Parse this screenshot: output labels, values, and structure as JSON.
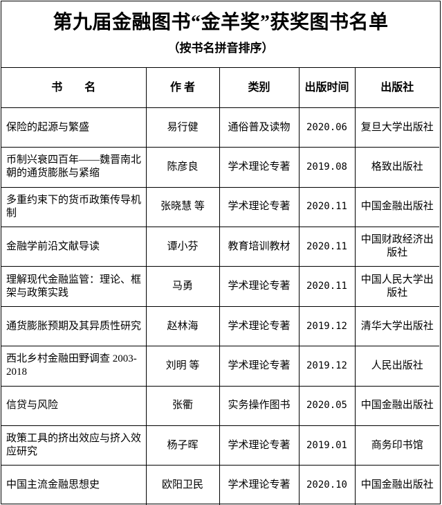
{
  "title": "第九届金融图书“金羊奖”获奖图书名单",
  "subtitle": "（按书名拼音排序）",
  "table": {
    "headers": [
      "书　　名",
      "作 者",
      "类别",
      "出版时间",
      "出版社"
    ],
    "rows": [
      [
        "保险的起源与繁盛",
        "易行健",
        "通俗普及读物",
        "2020.06",
        "复旦大学出版社"
      ],
      [
        "币制兴衰四百年——魏晋南北朝的通货膨胀与紧缩",
        "陈彦良",
        "学术理论专著",
        "2019.08",
        "格致出版社"
      ],
      [
        "多重约束下的货币政策传导机制",
        "张晓慧 等",
        "学术理论专著",
        "2020.11",
        "中国金融出版社"
      ],
      [
        "金融学前沿文献导读",
        "谭小芬",
        "教育培训教材",
        "2020.11",
        "中国财政经济出版社"
      ],
      [
        "理解现代金融监管：理论、框架与政策实践",
        "马勇",
        "学术理论专著",
        "2020.11",
        "中国人民大学出版社"
      ],
      [
        "通货膨胀预期及其异质性研究",
        "赵林海",
        "学术理论专著",
        "2019.12",
        "清华大学出版社"
      ],
      [
        "西北乡村金融田野调查 2003-2018",
        "刘明 等",
        "学术理论专著",
        "2019.12",
        "人民出版社"
      ],
      [
        "信贷与风险",
        "张衢",
        "实务操作图书",
        "2020.05",
        "中国金融出版社"
      ],
      [
        "政策工具的挤出效应与挤入效应研究",
        "杨子晖",
        "学术理论专著",
        "2019.01",
        "商务印书馆"
      ],
      [
        "中国主流金融思想史",
        "欧阳卫民",
        "学术理论专著",
        "2020.10",
        "中国金融出版社"
      ]
    ]
  }
}
